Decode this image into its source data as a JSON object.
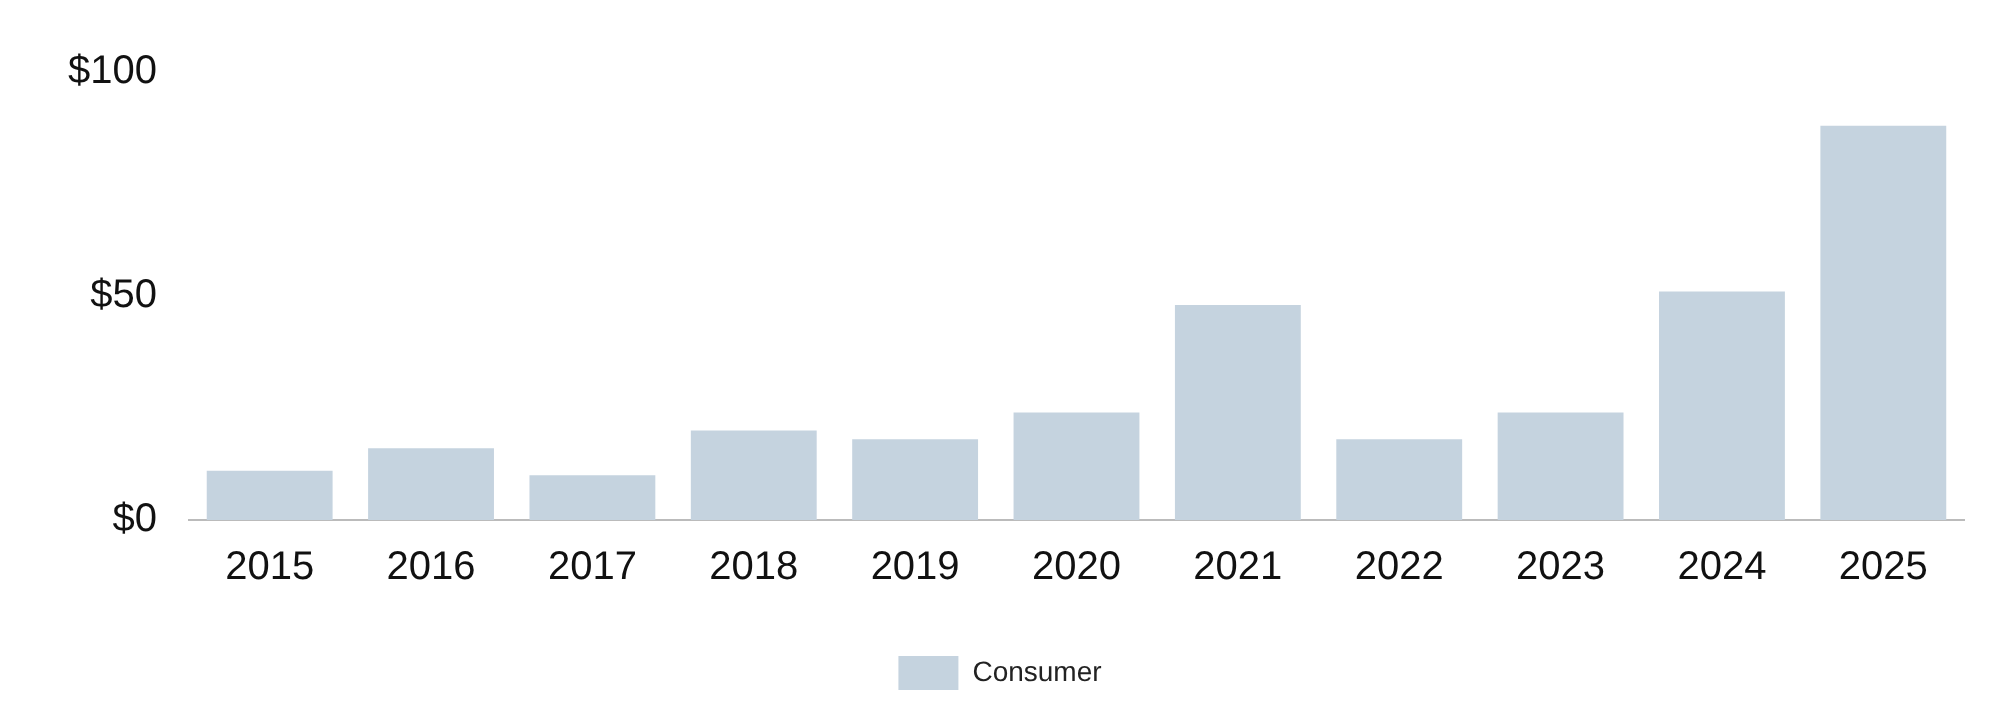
{
  "chart_data": {
    "type": "bar",
    "categories": [
      "2015",
      "2016",
      "2017",
      "2018",
      "2019",
      "2020",
      "2021",
      "2022",
      "2023",
      "2024",
      "2025"
    ],
    "series": [
      {
        "name": "Consumer",
        "color": "#c5d3df",
        "values": [
          11,
          16,
          10,
          20,
          18,
          24,
          48,
          18,
          24,
          51,
          88
        ]
      }
    ],
    "ylim": [
      0,
      100
    ],
    "yticks": [
      {
        "value": 0,
        "label": "$0"
      },
      {
        "value": 50,
        "label": "$50"
      },
      {
        "value": 100,
        "label": "$100"
      }
    ],
    "grid": false,
    "legend": "bottom"
  }
}
